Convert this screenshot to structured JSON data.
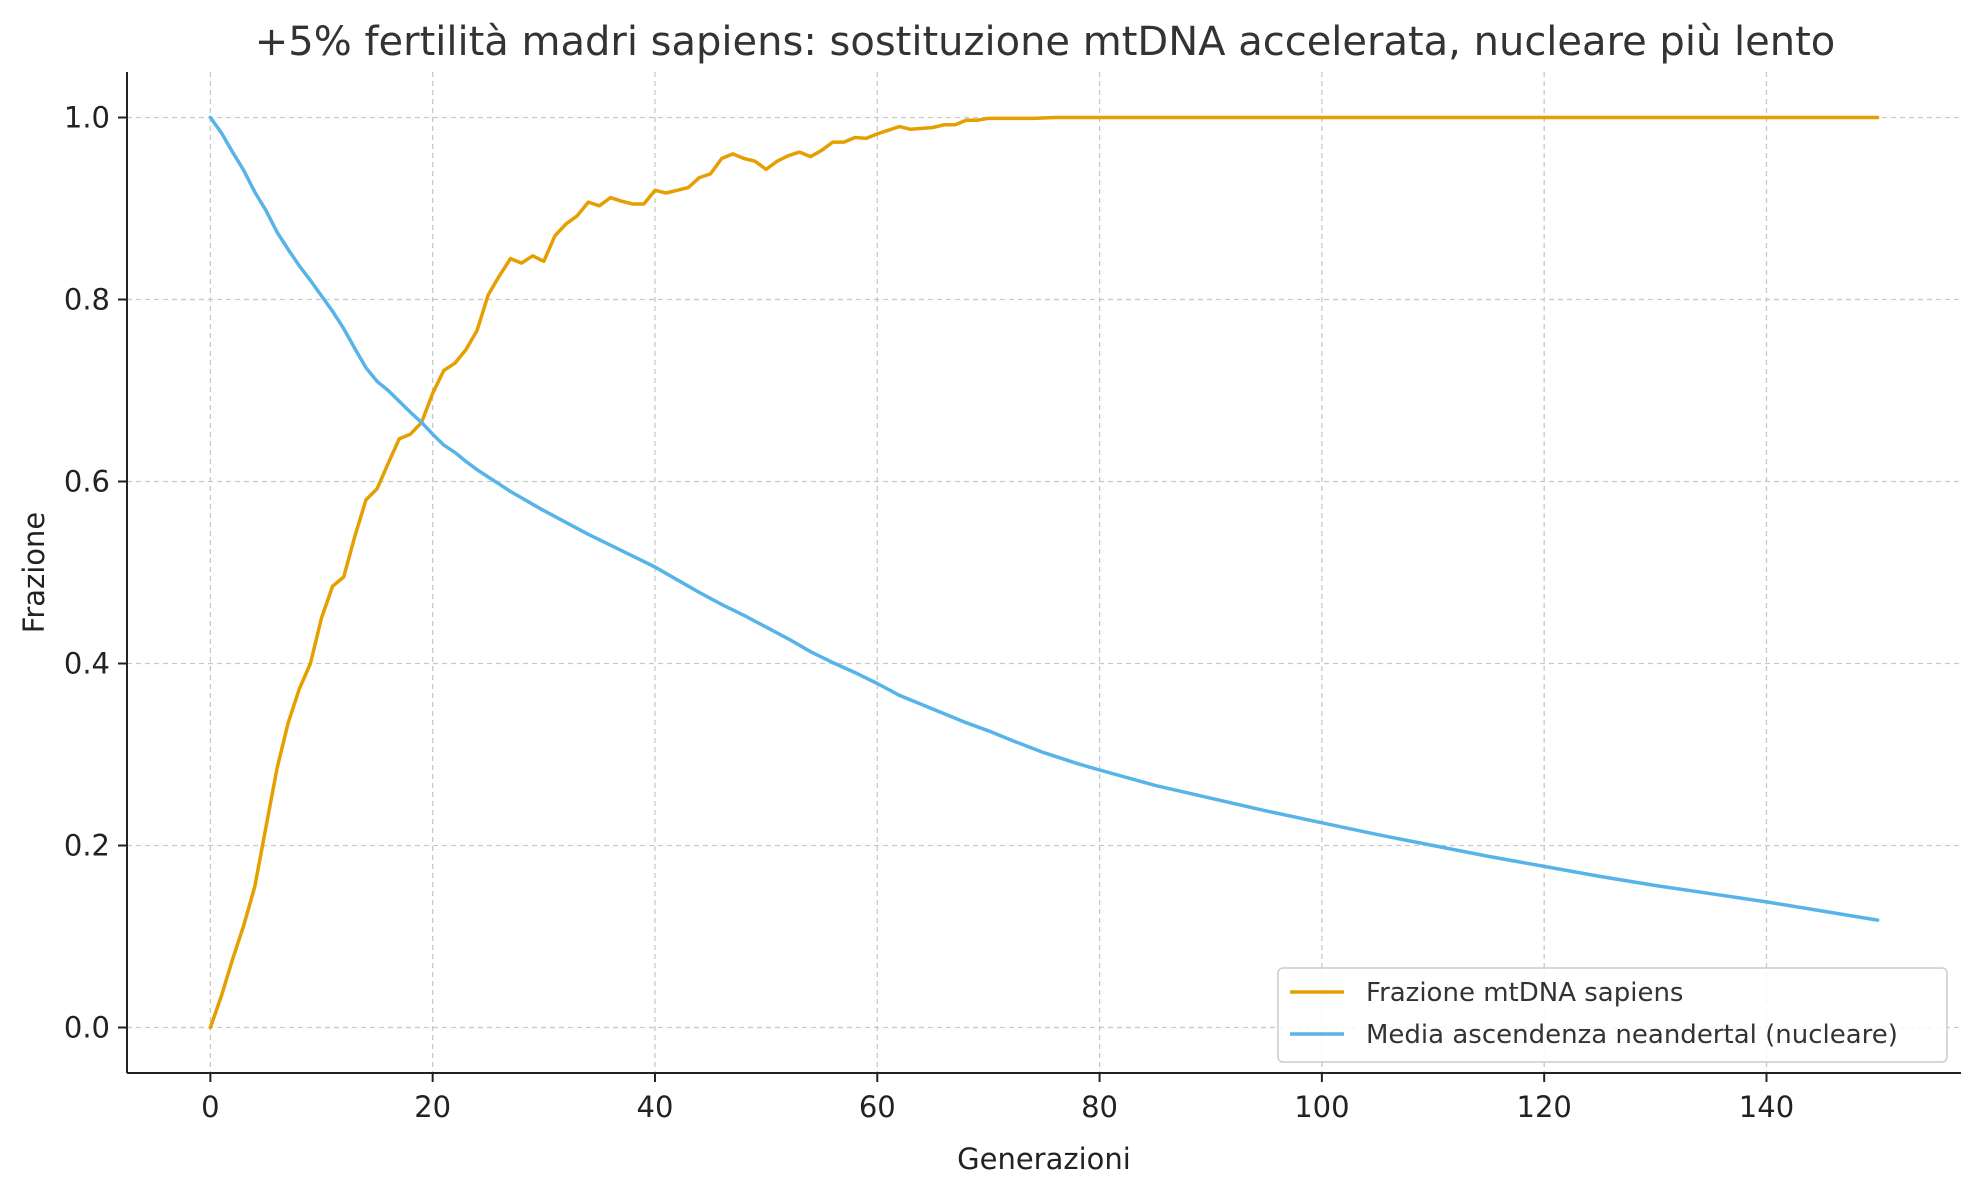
{
  "chart_data": {
    "type": "line",
    "title": "+5% fertilità madri sapiens: sostituzione mtDNA accelerata, nucleare più lento",
    "xlabel": "Generazioni",
    "ylabel": "Frazione",
    "xlim": [
      -7.5,
      157.5
    ],
    "ylim": [
      -0.05,
      1.05
    ],
    "xticks": [
      0,
      20,
      40,
      60,
      80,
      100,
      120,
      140
    ],
    "xtick_labels": [
      "0",
      "20",
      "40",
      "60",
      "80",
      "100",
      "120",
      "140"
    ],
    "yticks": [
      0.0,
      0.2,
      0.4,
      0.6,
      0.8,
      1.0
    ],
    "ytick_labels": [
      "0.0",
      "0.2",
      "0.4",
      "0.6",
      "0.8",
      "1.0"
    ],
    "grid": true,
    "legend_position": "lower-right",
    "series": [
      {
        "name": "Frazione mtDNA sapiens",
        "color": "#E69F00",
        "x": [
          0,
          1,
          2,
          3,
          4,
          5,
          6,
          7,
          8,
          9,
          10,
          11,
          12,
          13,
          14,
          15,
          16,
          17,
          18,
          19,
          20,
          21,
          22,
          23,
          24,
          25,
          26,
          27,
          28,
          29,
          30,
          31,
          32,
          33,
          34,
          35,
          36,
          37,
          38,
          39,
          40,
          41,
          42,
          43,
          44,
          45,
          46,
          47,
          48,
          49,
          50,
          51,
          52,
          53,
          54,
          55,
          56,
          57,
          58,
          59,
          60,
          61,
          62,
          63,
          64,
          65,
          66,
          67,
          68,
          69,
          70,
          72,
          74,
          76,
          80,
          90,
          100,
          110,
          120,
          130,
          140,
          150
        ],
        "y": [
          0.0,
          0.035,
          0.075,
          0.112,
          0.155,
          0.22,
          0.285,
          0.335,
          0.372,
          0.4,
          0.45,
          0.485,
          0.495,
          0.54,
          0.58,
          0.592,
          0.62,
          0.647,
          0.652,
          0.665,
          0.697,
          0.722,
          0.73,
          0.745,
          0.766,
          0.805,
          0.826,
          0.845,
          0.84,
          0.848,
          0.842,
          0.87,
          0.883,
          0.892,
          0.907,
          0.903,
          0.912,
          0.908,
          0.905,
          0.905,
          0.92,
          0.917,
          0.92,
          0.923,
          0.934,
          0.938,
          0.955,
          0.96,
          0.955,
          0.952,
          0.943,
          0.952,
          0.958,
          0.962,
          0.957,
          0.964,
          0.973,
          0.973,
          0.978,
          0.977,
          0.982,
          0.986,
          0.99,
          0.987,
          0.988,
          0.989,
          0.992,
          0.992,
          0.997,
          0.997,
          0.999,
          0.999,
          0.999,
          1.0,
          1.0,
          1.0,
          1.0,
          1.0,
          1.0,
          1.0,
          1.0,
          1.0
        ]
      },
      {
        "name": "Media ascendenza neandertal (nucleare)",
        "color": "#56B4E9",
        "x": [
          0,
          1,
          2,
          3,
          4,
          5,
          6,
          7,
          8,
          9,
          10,
          11,
          12,
          13,
          14,
          15,
          16,
          17,
          18,
          19,
          20,
          21,
          22,
          23,
          24,
          25,
          26,
          27,
          28,
          29,
          30,
          32,
          34,
          36,
          38,
          40,
          42,
          44,
          46,
          48,
          50,
          52,
          54,
          56,
          58,
          60,
          62,
          64,
          66,
          68,
          70,
          72,
          75,
          78,
          80,
          85,
          90,
          95,
          100,
          105,
          110,
          115,
          120,
          125,
          130,
          135,
          140,
          145,
          150
        ],
        "y": [
          1.0,
          0.983,
          0.962,
          0.942,
          0.918,
          0.898,
          0.874,
          0.855,
          0.837,
          0.821,
          0.804,
          0.787,
          0.768,
          0.746,
          0.725,
          0.71,
          0.7,
          0.688,
          0.676,
          0.665,
          0.652,
          0.64,
          0.632,
          0.622,
          0.613,
          0.605,
          0.597,
          0.589,
          0.582,
          0.575,
          0.568,
          0.555,
          0.542,
          0.53,
          0.518,
          0.506,
          0.492,
          0.478,
          0.465,
          0.453,
          0.44,
          0.427,
          0.413,
          0.401,
          0.39,
          0.378,
          0.365,
          0.355,
          0.345,
          0.335,
          0.326,
          0.316,
          0.302,
          0.29,
          0.283,
          0.266,
          0.252,
          0.238,
          0.225,
          0.212,
          0.2,
          0.188,
          0.177,
          0.166,
          0.156,
          0.147,
          0.138,
          0.128,
          0.118
        ]
      }
    ]
  }
}
